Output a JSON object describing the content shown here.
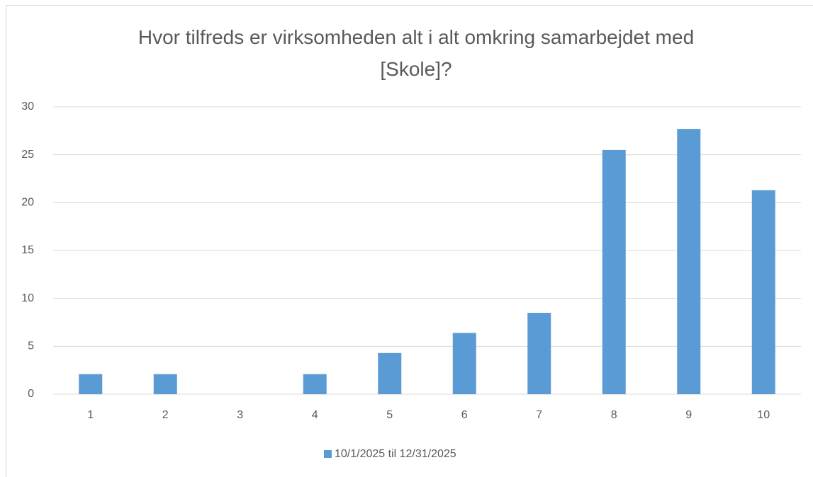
{
  "chart_data": {
    "type": "bar",
    "title": "Hvor tilfreds er virksomheden alt i alt omkring samarbejdet med [Skole]?",
    "categories": [
      "1",
      "2",
      "3",
      "4",
      "5",
      "6",
      "7",
      "8",
      "9",
      "10"
    ],
    "series": [
      {
        "name": "10/1/2025 til 12/31/2025",
        "color": "#5b9bd5",
        "values": [
          2.1,
          2.1,
          0,
          2.1,
          4.3,
          6.4,
          8.5,
          25.5,
          27.7,
          21.3
        ]
      }
    ],
    "ylim": [
      0,
      30
    ],
    "yticks": [
      0,
      5,
      10,
      15,
      20,
      25,
      30
    ],
    "grid": true,
    "legend": "bottom"
  }
}
